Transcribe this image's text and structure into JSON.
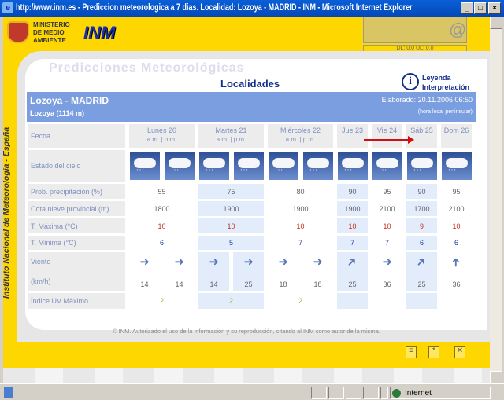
{
  "window": {
    "title": "http://www.inm.es - Prediccion meteorologica a 7 dias. Localidad: Lozoya - MADRID - INM - Microsoft Internet Explorer"
  },
  "header": {
    "ministry": [
      "MINISTERIO",
      "DE MEDIO",
      "AMBIENTE"
    ],
    "logo": "INM",
    "net_meter": "DL: 0.0 UL: 0.0",
    "vertical_text": "Instituto Nacional de Meteorología - España"
  },
  "title": {
    "background": "Predicciones Meteorológicas",
    "main": "Localidades",
    "legend_link": "Leyenda",
    "interp_link": "Interpretación"
  },
  "location": {
    "name": "Lozoya - MADRID",
    "sub": "Lozoya (1114 m)",
    "elaborado": "Elaborado: 20.11.2006 06:50",
    "hora": "(hora local peninsular)"
  },
  "labels": {
    "fecha": "Fecha",
    "cielo": "Estado del cielo",
    "prob": "Prob. precipitación (%)",
    "cota": "Cota nieve provincial (m)",
    "tmax": "T. Máxima (°C)",
    "tmin": "T. Mínima (°C)",
    "viento": "Viento",
    "kmh": "(km/h)",
    "uv": "Índice UV Máximo",
    "am_pm": "a.m.  |  p.m."
  },
  "days": [
    {
      "name": "Lunes 20",
      "split": true,
      "hl": false,
      "prob": "55",
      "cota": "1800",
      "tmax": "10",
      "tmin": "6",
      "uv": "2"
    },
    {
      "name": "Martes 21",
      "split": true,
      "hl": true,
      "prob": "75",
      "cota": "1900",
      "tmax": "10",
      "tmin": "5",
      "uv": "2"
    },
    {
      "name": "Miércoles 22",
      "split": true,
      "hl": false,
      "prob": "80",
      "cota": "1900",
      "tmax": "10",
      "tmin": "7",
      "uv": "2"
    },
    {
      "name": "Jue 23",
      "split": false,
      "hl": true,
      "prob": "90",
      "cota": "1900",
      "tmax": "10",
      "tmin": "7",
      "uv": ""
    },
    {
      "name": "Vie 24",
      "split": false,
      "hl": false,
      "prob": "95",
      "cota": "2100",
      "tmax": "10",
      "tmin": "7",
      "uv": ""
    },
    {
      "name": "Sáb 25",
      "split": false,
      "hl": true,
      "prob": "90",
      "cota": "1700",
      "tmax": "9",
      "tmin": "6",
      "uv": ""
    },
    {
      "name": "Dom 26",
      "split": false,
      "hl": false,
      "prob": "95",
      "cota": "2100",
      "tmax": "10",
      "tmin": "6",
      "uv": ""
    }
  ],
  "sky_icon": "cloud-rain-icon",
  "wind": [
    {
      "dir": "E",
      "speed": "14",
      "hl": false
    },
    {
      "dir": "E",
      "speed": "14",
      "hl": false
    },
    {
      "dir": "E",
      "speed": "14",
      "hl": true
    },
    {
      "dir": "E",
      "speed": "25",
      "hl": true
    },
    {
      "dir": "E",
      "speed": "18",
      "hl": false
    },
    {
      "dir": "E",
      "speed": "18",
      "hl": false
    },
    {
      "dir": "NE",
      "speed": "25",
      "hl": true
    },
    {
      "dir": "E",
      "speed": "36",
      "hl": false
    },
    {
      "dir": "NE",
      "speed": "25",
      "hl": true
    },
    {
      "dir": "N",
      "speed": "36",
      "hl": false
    }
  ],
  "footer": "© INM. Autorizado el uso de la información y su reproducción, citando al INM como autor de la misma.",
  "status": {
    "zone": "Internet"
  },
  "colors": {
    "band": "#7a9ee0",
    "highlight": "#e3ecfb",
    "page": "#ffd700",
    "tmax": "#c03020",
    "tmin": "#2040a0",
    "uv": "#a0b020"
  }
}
